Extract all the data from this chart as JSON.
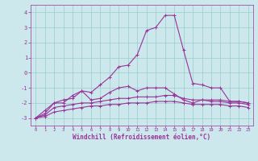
{
  "x": [
    0,
    1,
    2,
    3,
    4,
    5,
    6,
    7,
    8,
    9,
    10,
    11,
    12,
    13,
    14,
    15,
    16,
    17,
    18,
    19,
    20,
    21,
    22,
    23
  ],
  "line1": [
    -3.0,
    -2.5,
    -2.0,
    -1.8,
    -1.7,
    -1.2,
    -1.3,
    -0.8,
    -0.3,
    0.4,
    0.5,
    1.2,
    2.8,
    3.0,
    3.8,
    3.8,
    1.5,
    -0.7,
    -0.8,
    -1.0,
    -1.0,
    -1.9,
    -1.9,
    -2.0
  ],
  "line2": [
    -3.0,
    -2.7,
    -2.0,
    -2.0,
    -1.5,
    -1.2,
    -1.8,
    -1.7,
    -1.3,
    -1.0,
    -0.9,
    -1.2,
    -1.0,
    -1.0,
    -1.0,
    -1.4,
    -1.8,
    -2.0,
    -1.8,
    -1.8,
    -1.8,
    -1.9,
    -1.9,
    -2.0
  ],
  "line3": [
    -3.0,
    -2.8,
    -2.3,
    -2.2,
    -2.1,
    -2.0,
    -2.0,
    -1.9,
    -1.8,
    -1.7,
    -1.7,
    -1.6,
    -1.6,
    -1.6,
    -1.5,
    -1.5,
    -1.7,
    -1.8,
    -1.8,
    -1.9,
    -1.9,
    -2.0,
    -2.0,
    -2.1
  ],
  "line4": [
    -3.0,
    -2.9,
    -2.6,
    -2.5,
    -2.4,
    -2.3,
    -2.2,
    -2.2,
    -2.1,
    -2.1,
    -2.0,
    -2.0,
    -2.0,
    -1.9,
    -1.9,
    -1.9,
    -2.0,
    -2.1,
    -2.1,
    -2.1,
    -2.1,
    -2.2,
    -2.2,
    -2.3
  ],
  "bg_color": "#cce8ec",
  "grid_color": "#99cccc",
  "line_color": "#993399",
  "xlabel": "Windchill (Refroidissement éolien,°C)",
  "ylim": [
    -3.5,
    4.5
  ],
  "xlim": [
    -0.5,
    23.5
  ],
  "yticks": [
    -3,
    -2,
    -1,
    0,
    1,
    2,
    3,
    4
  ],
  "xticks": [
    0,
    1,
    2,
    3,
    4,
    5,
    6,
    7,
    8,
    9,
    10,
    11,
    12,
    13,
    14,
    15,
    16,
    17,
    18,
    19,
    20,
    21,
    22,
    23
  ]
}
